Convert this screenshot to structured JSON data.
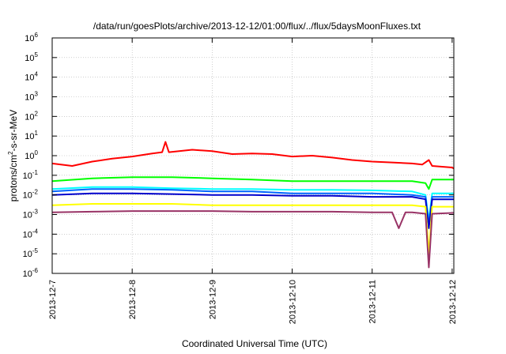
{
  "chart_data": {
    "type": "line",
    "title": "/data/run/goesPlots/archive/2013-12-12/01:00/flux/../flux/5daysMoonFluxes.txt",
    "xlabel": "Coordinated Universal Time (UTC)",
    "ylabel_main": "protons/cm",
    "ylabel_sup": "2",
    "ylabel_rest": "-s-sr-MeV",
    "y_scale": "log",
    "ylim": [
      1e-06,
      1000000.0
    ],
    "xlim": [
      "2013-12-07T00:00",
      "2013-12-12T00:30"
    ],
    "x_tick_labels": [
      "2013-12-7",
      "2013-12-8",
      "2013-12-9",
      "2013-12-10",
      "2013-12-11",
      "2013-12-12"
    ],
    "y_ticks": [
      {
        "base": "10",
        "exp": "-6"
      },
      {
        "base": "10",
        "exp": "-5"
      },
      {
        "base": "10",
        "exp": "-4"
      },
      {
        "base": "10",
        "exp": "-3"
      },
      {
        "base": "10",
        "exp": "-2"
      },
      {
        "base": "10",
        "exp": "-1"
      },
      {
        "base": "10",
        "exp": "0"
      },
      {
        "base": "10",
        "exp": "1"
      },
      {
        "base": "10",
        "exp": "2"
      },
      {
        "base": "10",
        "exp": "3"
      },
      {
        "base": "10",
        "exp": "4"
      },
      {
        "base": "10",
        "exp": "5"
      },
      {
        "base": "10",
        "exp": "6"
      }
    ],
    "grid": true,
    "legend": "none",
    "series": [
      {
        "color": "#ff0000",
        "x": [
          "2013-12-07T00:00",
          "2013-12-07T06:00",
          "2013-12-07T12:00",
          "2013-12-07T18:00",
          "2013-12-08T00:00",
          "2013-12-08T06:00",
          "2013-12-08T09:00",
          "2013-12-08T10:00",
          "2013-12-08T11:00",
          "2013-12-08T18:00",
          "2013-12-09T00:00",
          "2013-12-09T06:00",
          "2013-12-09T12:00",
          "2013-12-09T18:00",
          "2013-12-10T00:00",
          "2013-12-10T06:00",
          "2013-12-10T12:00",
          "2013-12-10T18:00",
          "2013-12-11T00:00",
          "2013-12-11T06:00",
          "2013-12-11T12:00",
          "2013-12-11T15:00",
          "2013-12-11T17:00",
          "2013-12-11T18:00",
          "2013-12-12T00:00",
          "2013-12-12T00:30"
        ],
        "y": [
          0.4,
          0.3,
          0.5,
          0.7,
          0.9,
          1.3,
          1.5,
          5,
          1.5,
          2.0,
          1.7,
          1.2,
          1.3,
          1.2,
          0.9,
          1.0,
          0.8,
          0.6,
          0.5,
          0.45,
          0.4,
          0.35,
          0.6,
          0.3,
          0.25,
          0.22
        ]
      },
      {
        "color": "#00ff00",
        "x": [
          "2013-12-07T00:00",
          "2013-12-07T12:00",
          "2013-12-08T00:00",
          "2013-12-08T12:00",
          "2013-12-09T00:00",
          "2013-12-09T12:00",
          "2013-12-10T00:00",
          "2013-12-10T12:00",
          "2013-12-11T00:00",
          "2013-12-11T12:00",
          "2013-12-11T16:00",
          "2013-12-11T17:00",
          "2013-12-11T18:00",
          "2013-12-12T00:00",
          "2013-12-12T00:30"
        ],
        "y": [
          0.05,
          0.07,
          0.08,
          0.08,
          0.07,
          0.06,
          0.05,
          0.05,
          0.05,
          0.05,
          0.04,
          0.02,
          0.06,
          0.06,
          0.06
        ]
      },
      {
        "color": "#00ffff",
        "x": [
          "2013-12-07T00:00",
          "2013-12-07T12:00",
          "2013-12-08T00:00",
          "2013-12-08T12:00",
          "2013-12-09T00:00",
          "2013-12-09T12:00",
          "2013-12-10T00:00",
          "2013-12-10T12:00",
          "2013-12-11T00:00",
          "2013-12-11T12:00",
          "2013-12-11T16:00",
          "2013-12-11T17:00",
          "2013-12-11T18:00",
          "2013-12-12T00:00",
          "2013-12-12T00:30"
        ],
        "y": [
          0.02,
          0.025,
          0.025,
          0.022,
          0.02,
          0.02,
          0.018,
          0.018,
          0.017,
          0.015,
          0.01,
          0.0005,
          0.012,
          0.012,
          0.012
        ]
      },
      {
        "color": "#0066ff",
        "x": [
          "2013-12-07T00:00",
          "2013-12-07T12:00",
          "2013-12-08T00:00",
          "2013-12-08T12:00",
          "2013-12-09T00:00",
          "2013-12-09T12:00",
          "2013-12-10T00:00",
          "2013-12-10T12:00",
          "2013-12-11T00:00",
          "2013-12-11T12:00",
          "2013-12-11T16:00",
          "2013-12-11T17:00",
          "2013-12-11T18:00",
          "2013-12-12T00:00",
          "2013-12-12T00:30"
        ],
        "y": [
          0.015,
          0.02,
          0.02,
          0.018,
          0.015,
          0.015,
          0.012,
          0.012,
          0.012,
          0.01,
          0.008,
          0.0003,
          0.008,
          0.008,
          0.008
        ]
      },
      {
        "color": "#0000cc",
        "x": [
          "2013-12-07T00:00",
          "2013-12-07T12:00",
          "2013-12-08T00:00",
          "2013-12-08T12:00",
          "2013-12-09T00:00",
          "2013-12-09T12:00",
          "2013-12-10T00:00",
          "2013-12-10T12:00",
          "2013-12-11T00:00",
          "2013-12-11T12:00",
          "2013-12-11T16:00",
          "2013-12-11T17:00",
          "2013-12-11T18:00",
          "2013-12-12T00:00",
          "2013-12-12T00:30"
        ],
        "y": [
          0.01,
          0.012,
          0.012,
          0.011,
          0.01,
          0.01,
          0.009,
          0.009,
          0.008,
          0.008,
          0.006,
          0.0002,
          0.006,
          0.006,
          0.006
        ]
      },
      {
        "color": "#ffff00",
        "x": [
          "2013-12-07T00:00",
          "2013-12-07T12:00",
          "2013-12-08T00:00",
          "2013-12-08T12:00",
          "2013-12-09T00:00",
          "2013-12-09T12:00",
          "2013-12-10T00:00",
          "2013-12-10T12:00",
          "2013-12-11T00:00",
          "2013-12-11T12:00",
          "2013-12-11T16:00",
          "2013-12-11T17:00",
          "2013-12-11T18:00",
          "2013-12-12T00:00",
          "2013-12-12T00:30"
        ],
        "y": [
          0.003,
          0.0035,
          0.0035,
          0.0035,
          0.003,
          0.003,
          0.003,
          0.003,
          0.003,
          0.003,
          0.0025,
          1e-05,
          0.0025,
          0.0025,
          0.0025
        ]
      },
      {
        "color": "#993366",
        "x": [
          "2013-12-07T00:00",
          "2013-12-07T12:00",
          "2013-12-08T00:00",
          "2013-12-08T12:00",
          "2013-12-09T00:00",
          "2013-12-09T12:00",
          "2013-12-10T00:00",
          "2013-12-10T12:00",
          "2013-12-11T00:00",
          "2013-12-11T06:00",
          "2013-12-11T08:00",
          "2013-12-11T10:00",
          "2013-12-11T12:00",
          "2013-12-11T16:00",
          "2013-12-11T17:00",
          "2013-12-11T18:00",
          "2013-12-12T00:00",
          "2013-12-12T00:30"
        ],
        "y": [
          0.0013,
          0.0014,
          0.0015,
          0.0015,
          0.0015,
          0.0014,
          0.0014,
          0.0014,
          0.0013,
          0.0013,
          0.0002,
          0.0013,
          0.0013,
          0.0011,
          2e-06,
          0.0011,
          0.0012,
          0.0012
        ]
      }
    ]
  }
}
